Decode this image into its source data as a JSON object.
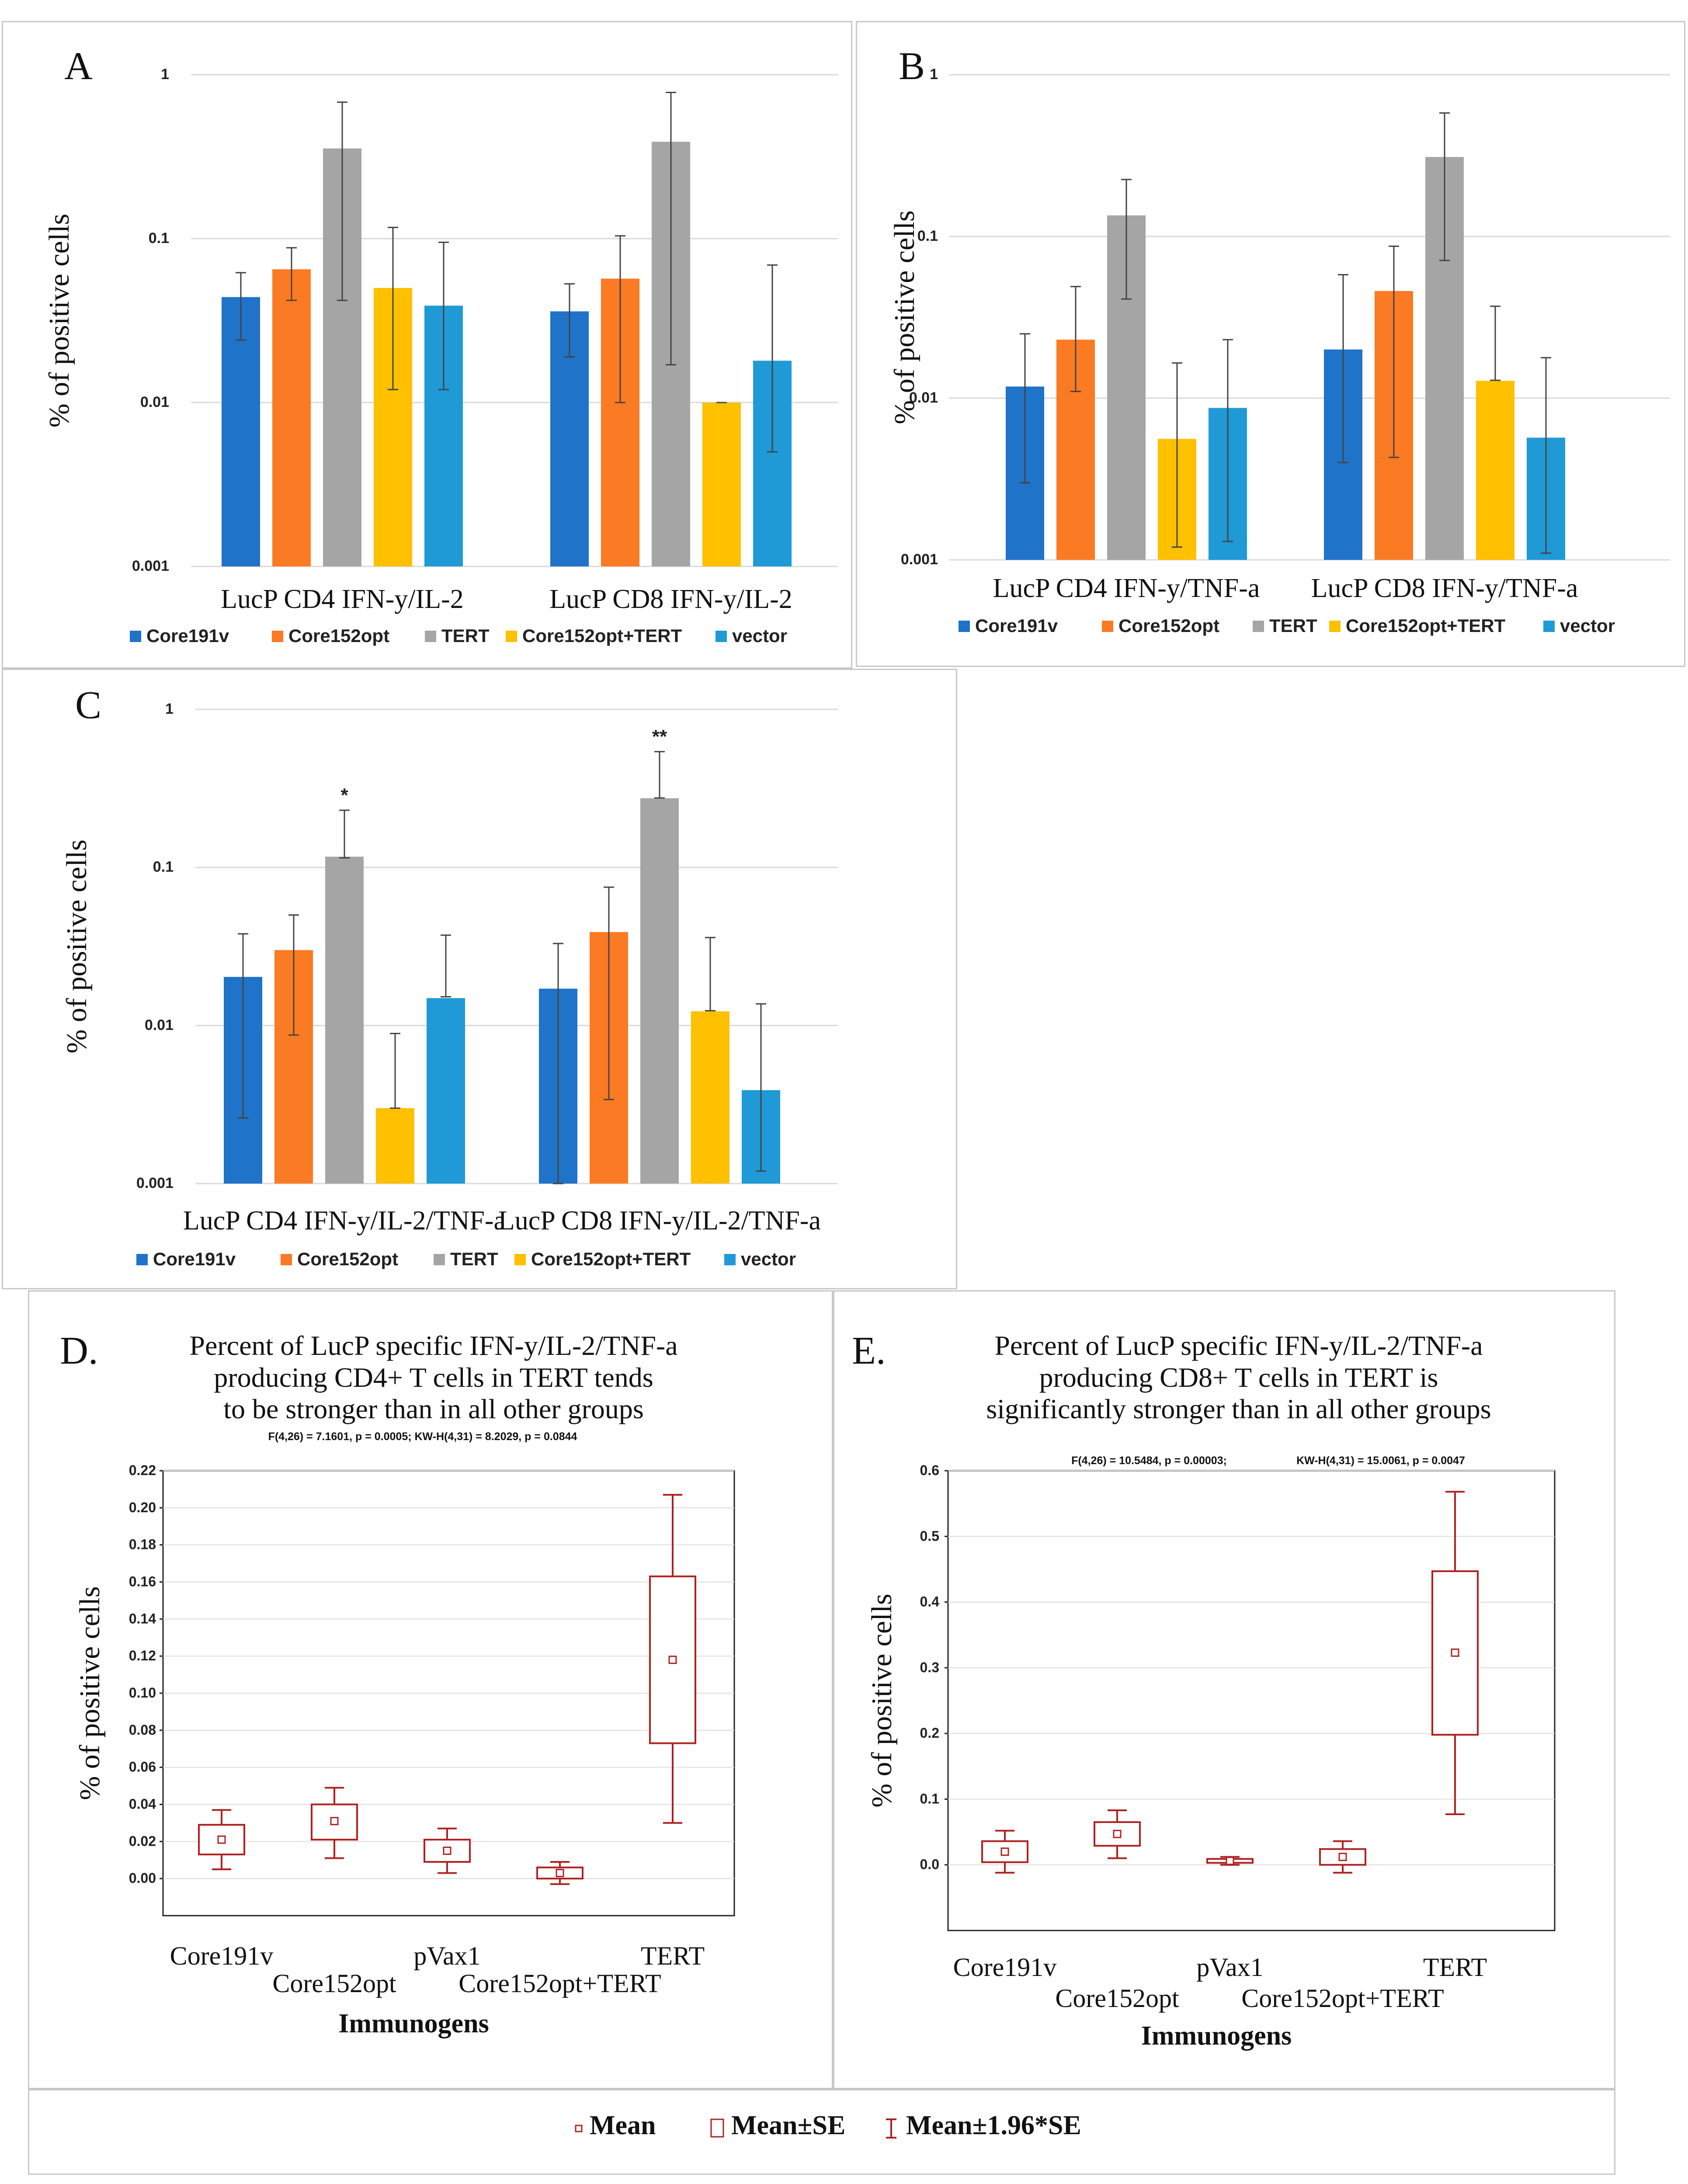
{
  "series_colors": [
    "#1f73c8",
    "#fb7a24",
    "#a5a5a5",
    "#ffc000",
    "#1f9ad6"
  ],
  "box_color": "#b02020",
  "chart_data": [
    {
      "id": "A",
      "type": "bar",
      "scale": "log",
      "panel_label": "A",
      "ylabel": "% of positive cells",
      "yticks": [
        "1",
        "0.1",
        "0.01",
        "0.001"
      ],
      "ylim": [
        0.001,
        1
      ],
      "categories": [
        "LucP CD4 IFN-y/IL-2",
        "LucP CD8 IFN-y/IL-2"
      ],
      "series": [
        {
          "name": "Core191v",
          "values": [
            0.044,
            0.036
          ],
          "err_low": [
            0.024,
            0.019
          ],
          "err_high": [
            0.062,
            0.053
          ]
        },
        {
          "name": "Core152opt",
          "values": [
            0.065,
            0.057
          ],
          "err_low": [
            0.042,
            0.01
          ],
          "err_high": [
            0.088,
            0.104
          ]
        },
        {
          "name": "TERT",
          "values": [
            0.355,
            0.39
          ],
          "err_low": [
            0.042,
            0.017
          ],
          "err_high": [
            0.68,
            0.78
          ]
        },
        {
          "name": "Core152opt+TERT",
          "values": [
            0.05,
            0.01
          ],
          "err_low": [
            0.012,
            0.01
          ],
          "err_high": [
            0.117,
            0.01
          ]
        },
        {
          "name": "vector",
          "values": [
            0.039,
            0.018
          ],
          "err_low": [
            0.012,
            0.005
          ],
          "err_high": [
            0.095,
            0.069
          ]
        }
      ],
      "annotations": []
    },
    {
      "id": "B",
      "type": "bar",
      "scale": "log",
      "panel_label": "B",
      "ylabel": "% of positive cells",
      "yticks": [
        "1",
        "0.1",
        "0.01",
        "0.001"
      ],
      "ylim": [
        0.001,
        1
      ],
      "categories": [
        "LucP CD4 IFN-y/TNF-a",
        "LucP CD8 IFN-y/TNF-a"
      ],
      "series": [
        {
          "name": "Core191v",
          "values": [
            0.0118,
            0.02
          ],
          "err_low": [
            0.003,
            0.004
          ],
          "err_high": [
            0.025,
            0.058
          ]
        },
        {
          "name": "Core152opt",
          "values": [
            0.023,
            0.046
          ],
          "err_low": [
            0.011,
            0.0043
          ],
          "err_high": [
            0.049,
            0.087
          ]
        },
        {
          "name": "TERT",
          "values": [
            0.135,
            0.31
          ],
          "err_low": [
            0.041,
            0.071
          ],
          "err_high": [
            0.225,
            0.58
          ]
        },
        {
          "name": "Core152opt+TERT",
          "values": [
            0.0056,
            0.0128
          ],
          "err_low": [
            0.0012,
            0.0129
          ],
          "err_high": [
            0.0165,
            0.037
          ]
        },
        {
          "name": "vector",
          "values": [
            0.0087,
            0.0057
          ],
          "err_low": [
            0.0013,
            0.0011
          ],
          "err_high": [
            0.023,
            0.0178
          ]
        }
      ],
      "annotations": []
    },
    {
      "id": "C",
      "type": "bar",
      "scale": "log",
      "panel_label": "C",
      "ylabel": "% of positive cells",
      "yticks": [
        "1",
        "0.1",
        "0.01",
        "0.001"
      ],
      "ylim": [
        0.001,
        1
      ],
      "categories": [
        "LucP CD4 IFN-y/IL-2/TNF-a",
        "LucP CD8 IFN-y/IL-2/TNF-a"
      ],
      "series": [
        {
          "name": "Core191v",
          "values": [
            0.0203,
            0.0171
          ],
          "err_low": [
            0.0026,
            0.001
          ],
          "err_high": [
            0.038,
            0.033
          ]
        },
        {
          "name": "Core152opt",
          "values": [
            0.03,
            0.039
          ],
          "err_low": [
            0.0087,
            0.0034
          ],
          "err_high": [
            0.05,
            0.075
          ]
        },
        {
          "name": "TERT",
          "values": [
            0.117,
            0.274
          ],
          "err_low": [
            0.115,
            0.275
          ],
          "err_high": [
            0.23,
            0.54
          ]
        },
        {
          "name": "Core152opt+TERT",
          "values": [
            0.003,
            0.0123
          ],
          "err_low": [
            0.003,
            0.0124
          ],
          "err_high": [
            0.0089,
            0.036
          ]
        },
        {
          "name": "vector",
          "values": [
            0.0149,
            0.0039
          ],
          "err_low": [
            0.0152,
            0.0012
          ],
          "err_high": [
            0.0373,
            0.0137
          ]
        }
      ],
      "annotations": [
        {
          "category": 0,
          "series": 2,
          "text": "*"
        },
        {
          "category": 1,
          "series": 2,
          "text": "**"
        }
      ]
    },
    {
      "id": "D",
      "type": "box",
      "panel_label": "D.",
      "title_lines": [
        "Percent of LucP specific   IFN-y/IL-2/TNF-a",
        "producing CD4+ T cells in TERT tends",
        "to be stronger than in all other groups"
      ],
      "stats": "F(4,26) = 7.1601, p = 0.0005; KW-H(4,31) = 8.2029, p = 0.0844",
      "ylabel": "% of positive cells",
      "xlabel": "Immunogens",
      "ylim": [
        -0.02,
        0.22
      ],
      "yticks": [
        "0.22",
        "0.20",
        "0.18",
        "0.16",
        "0.14",
        "0.12",
        "0.10",
        "0.08",
        "0.06",
        "0.04",
        "0.02",
        "0.00"
      ],
      "categories": [
        "Core191v",
        "Core152opt",
        "pVax1",
        "Core152opt+TERT",
        "TERT"
      ],
      "boxes": [
        {
          "mean": 0.021,
          "se_low": 0.013,
          "se_high": 0.029,
          "ci_low": 0.005,
          "ci_high": 0.037
        },
        {
          "mean": 0.031,
          "se_low": 0.021,
          "se_high": 0.04,
          "ci_low": 0.011,
          "ci_high": 0.049
        },
        {
          "mean": 0.015,
          "se_low": 0.009,
          "se_high": 0.021,
          "ci_low": 0.003,
          "ci_high": 0.027
        },
        {
          "mean": 0.003,
          "se_low": 0.0,
          "se_high": 0.006,
          "ci_low": -0.003,
          "ci_high": 0.009
        },
        {
          "mean": 0.118,
          "se_low": 0.073,
          "se_high": 0.163,
          "ci_low": 0.03,
          "ci_high": 0.207
        }
      ]
    },
    {
      "id": "E",
      "type": "box",
      "panel_label": "E.",
      "title_lines": [
        "Percent of LucP specific  IFN-y/IL-2/TNF-a",
        "producing  CD8+ T cells in TERT is",
        "significantly stronger than in all other groups"
      ],
      "stats_left": "F(4,26) = 10.5484, p = 0.00003;",
      "stats_right": "KW-H(4,31) = 15.0061, p = 0.0047",
      "ylabel": "% of positive cells",
      "xlabel": "Immunogens",
      "ylim": [
        -0.1,
        0.6
      ],
      "yticks": [
        "0.6",
        "0.5",
        "0.4",
        "0.3",
        "0.2",
        "0.1",
        "0.0"
      ],
      "categories": [
        "Core191v",
        "Core152opt",
        "pVax1",
        "Core152opt+TERT",
        "TERT"
      ],
      "boxes": [
        {
          "mean": 0.02,
          "se_low": 0.004,
          "se_high": 0.036,
          "ci_low": -0.012,
          "ci_high": 0.052
        },
        {
          "mean": 0.047,
          "se_low": 0.029,
          "se_high": 0.065,
          "ci_low": 0.01,
          "ci_high": 0.083
        },
        {
          "mean": 0.006,
          "se_low": 0.003,
          "se_high": 0.009,
          "ci_low": 0.0,
          "ci_high": 0.012
        },
        {
          "mean": 0.012,
          "se_low": 0.0,
          "se_high": 0.024,
          "ci_low": -0.012,
          "ci_high": 0.036
        },
        {
          "mean": 0.323,
          "se_low": 0.198,
          "se_high": 0.447,
          "ci_low": 0.077,
          "ci_high": 0.568
        }
      ]
    }
  ],
  "legend_bottom": [
    "Mean",
    "Mean±SE",
    "Mean±1.96*SE"
  ]
}
